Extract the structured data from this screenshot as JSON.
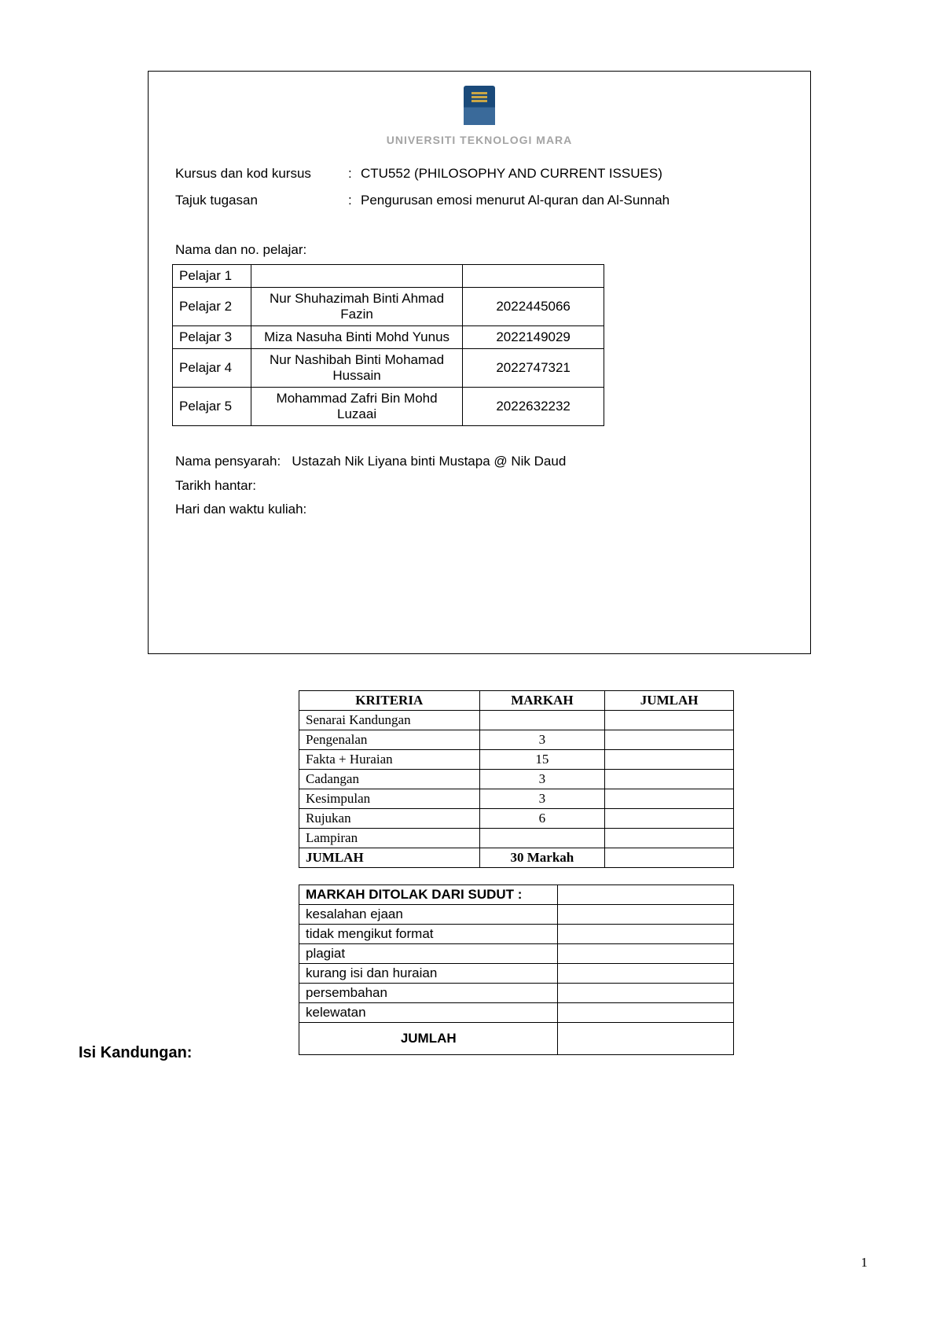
{
  "university": "UNIVERSITI TEKNOLOGI MARA",
  "course_row": {
    "label": "Kursus dan kod kursus",
    "value": "CTU552 (PHILOSOPHY AND CURRENT ISSUES)"
  },
  "title_row": {
    "label": "Tajuk tugasan",
    "value": "Pengurusan emosi menurut Al-quran dan Al-Sunnah"
  },
  "student_section_label": "Nama dan no. pelajar:",
  "students": [
    {
      "label": "Pelajar 1",
      "name": "",
      "id": ""
    },
    {
      "label": "Pelajar 2",
      "name": "Nur Shuhazimah Binti Ahmad Fazin",
      "id": "2022445066"
    },
    {
      "label": "Pelajar 3",
      "name": "Miza Nasuha Binti Mohd Yunus",
      "id": "2022149029"
    },
    {
      "label": "Pelajar 4",
      "name": "Nur Nashibah Binti Mohamad Hussain",
      "id": "2022747321"
    },
    {
      "label": "Pelajar 5",
      "name": "Mohammad Zafri Bin Mohd Luzaai",
      "id": "2022632232"
    }
  ],
  "lecturer": {
    "label": "Nama pensyarah:",
    "value": "Ustazah Nik Liyana binti Mustapa @ Nik Daud"
  },
  "submission_date": {
    "label": "Tarikh hantar:",
    "value": ""
  },
  "class_time": {
    "label": "Hari dan waktu kuliah:",
    "value": ""
  },
  "criteria": {
    "headers": [
      "KRITERIA",
      "MARKAH",
      "JUMLAH"
    ],
    "rows": [
      {
        "name": "Senarai Kandungan",
        "mark": "",
        "total": ""
      },
      {
        "name": "Pengenalan",
        "mark": "3",
        "total": ""
      },
      {
        "name": "Fakta + Huraian",
        "mark": "15",
        "total": ""
      },
      {
        "name": "Cadangan",
        "mark": "3",
        "total": ""
      },
      {
        "name": "Kesimpulan",
        "mark": "3",
        "total": ""
      },
      {
        "name": "Rujukan",
        "mark": "6",
        "total": ""
      },
      {
        "name": "Lampiran",
        "mark": "",
        "total": ""
      }
    ],
    "total": {
      "name": "JUMLAH",
      "mark": "30 Markah",
      "total": ""
    }
  },
  "deductions": {
    "header": "MARKAH DITOLAK DARI SUDUT :",
    "rows": [
      {
        "name": "kesalahan ejaan",
        "value": ""
      },
      {
        "name": "tidak mengikut format",
        "value": ""
      },
      {
        "name": "plagiat",
        "value": ""
      },
      {
        "name": "kurang isi dan huraian",
        "value": ""
      },
      {
        "name": "persembahan",
        "value": ""
      },
      {
        "name": "kelewatan",
        "value": ""
      }
    ],
    "total": {
      "name": "JUMLAH",
      "value": ""
    }
  },
  "content_heading": "Isi Kandungan:",
  "page_number": "1"
}
